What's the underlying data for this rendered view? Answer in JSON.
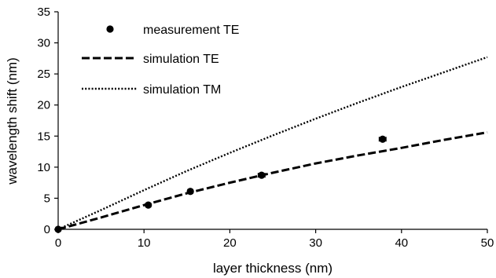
{
  "chart_data": {
    "type": "scatter",
    "title": "",
    "xlabel": "layer thickness (nm)",
    "ylabel": "wavelength shift (nm)",
    "xlim": [
      0,
      50
    ],
    "ylim": [
      0,
      35
    ],
    "xticks": [
      0,
      10,
      20,
      30,
      40,
      50
    ],
    "yticks": [
      0,
      5,
      10,
      15,
      20,
      25,
      30,
      35
    ],
    "grid": false,
    "legend_position": "top-left",
    "series": [
      {
        "name": "measurement TE",
        "kind": "scatter",
        "color": "#000000",
        "x": [
          0,
          10.5,
          15.4,
          23.7,
          37.8
        ],
        "y": [
          0,
          3.9,
          6.1,
          8.7,
          14.5
        ],
        "xerr": [
          0,
          0.3,
          0.3,
          0.4,
          0.4
        ]
      },
      {
        "name": "simulation TE",
        "kind": "line",
        "style": "dashed",
        "color": "#000000",
        "x": [
          0,
          5,
          10,
          15,
          20,
          25,
          30,
          35,
          40,
          45,
          50
        ],
        "y": [
          0,
          1.9,
          3.9,
          5.8,
          7.5,
          9.1,
          10.6,
          11.9,
          13.1,
          14.4,
          15.6
        ]
      },
      {
        "name": "simulation TM",
        "kind": "line",
        "style": "dotted",
        "color": "#000000",
        "x": [
          0,
          5,
          10,
          15,
          20,
          25,
          30,
          35,
          40,
          45,
          50
        ],
        "y": [
          0,
          3.1,
          6.3,
          9.4,
          12.3,
          15.1,
          17.8,
          20.4,
          22.9,
          25.3,
          27.7
        ]
      }
    ]
  }
}
